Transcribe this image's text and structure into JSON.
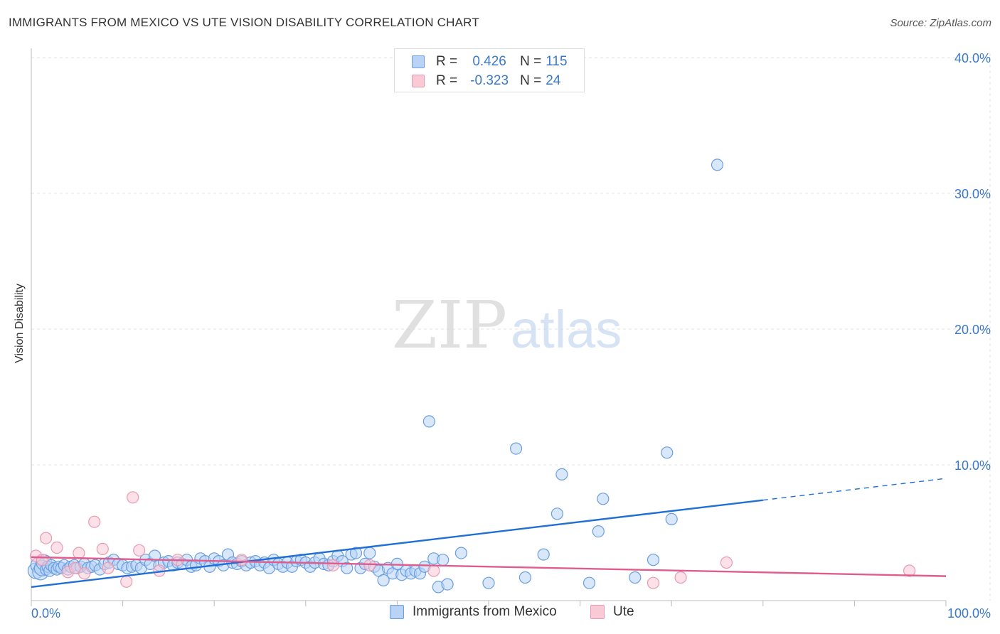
{
  "title": "IMMIGRANTS FROM MEXICO VS UTE VISION DISABILITY CORRELATION CHART",
  "source": "Source: ZipAtlas.com",
  "watermark": {
    "zip": "ZIP",
    "atlas": "atlas"
  },
  "stats": [
    {
      "r_label": "R =",
      "r_value": "0.426",
      "n_label": "N =",
      "n_value": "115",
      "fill": "#b8d3f5",
      "stroke": "#6a9ee0"
    },
    {
      "r_label": "R =",
      "r_value": "-0.323",
      "n_label": "N =",
      "n_value": "24",
      "fill": "#f9c9d6",
      "stroke": "#e89ab2"
    }
  ],
  "legend": [
    {
      "label": "Immigrants from Mexico",
      "fill": "#b8d3f5",
      "stroke": "#6a9ee0"
    },
    {
      "label": "Ute",
      "fill": "#f9c9d6",
      "stroke": "#e89ab2"
    }
  ],
  "chart_data": {
    "type": "scatter",
    "title": "IMMIGRANTS FROM MEXICO VS UTE VISION DISABILITY CORRELATION CHART",
    "xlabel": "",
    "ylabel": "Vision Disability",
    "xlim": [
      0,
      100
    ],
    "ylim": [
      0,
      42
    ],
    "x_tick_labels": [
      {
        "value": 0,
        "label": "0.0%"
      },
      {
        "value": 100,
        "label": "100.0%"
      }
    ],
    "y_tick_labels": [
      {
        "value": 10,
        "label": "10.0%"
      },
      {
        "value": 20,
        "label": "20.0%"
      },
      {
        "value": 30,
        "label": "30.0%"
      },
      {
        "value": 40,
        "label": "40.0%"
      }
    ],
    "grid": true,
    "series": [
      {
        "name": "Immigrants from Mexico",
        "color": "#6a9ee0",
        "fill": "#b8d3f5",
        "points": [
          [
            0.5,
            2.2
          ],
          [
            0.8,
            2.6
          ],
          [
            1.0,
            2.1
          ],
          [
            1.2,
            2.4
          ],
          [
            1.4,
            2.8
          ],
          [
            1.6,
            2.3
          ],
          [
            1.8,
            2.5
          ],
          [
            2.0,
            2.2
          ],
          [
            2.2,
            2.6
          ],
          [
            2.5,
            2.4
          ],
          [
            2.8,
            2.3
          ],
          [
            3.0,
            2.5
          ],
          [
            3.3,
            2.4
          ],
          [
            3.6,
            2.6
          ],
          [
            4.0,
            2.3
          ],
          [
            4.3,
            2.5
          ],
          [
            4.7,
            2.6
          ],
          [
            5.0,
            2.4
          ],
          [
            5.4,
            2.5
          ],
          [
            5.8,
            2.7
          ],
          [
            6.2,
            2.4
          ],
          [
            6.6,
            2.5
          ],
          [
            7.0,
            2.6
          ],
          [
            7.5,
            2.3
          ],
          [
            8.0,
            2.7
          ],
          [
            8.5,
            2.8
          ],
          [
            9.0,
            3.0
          ],
          [
            9.5,
            2.7
          ],
          [
            10.0,
            2.6
          ],
          [
            10.5,
            2.4
          ],
          [
            11.0,
            2.5
          ],
          [
            11.5,
            2.6
          ],
          [
            12.0,
            2.4
          ],
          [
            12.5,
            3.0
          ],
          [
            13.0,
            2.7
          ],
          [
            13.5,
            3.3
          ],
          [
            14.0,
            2.6
          ],
          [
            14.5,
            2.8
          ],
          [
            15.0,
            2.9
          ],
          [
            15.5,
            2.6
          ],
          [
            16.0,
            2.8
          ],
          [
            16.5,
            2.7
          ],
          [
            17.0,
            3.0
          ],
          [
            17.5,
            2.5
          ],
          [
            18.0,
            2.6
          ],
          [
            18.5,
            3.1
          ],
          [
            19.0,
            2.9
          ],
          [
            19.5,
            2.5
          ],
          [
            20.0,
            3.1
          ],
          [
            20.5,
            2.9
          ],
          [
            21.0,
            2.6
          ],
          [
            21.5,
            3.4
          ],
          [
            22.0,
            2.8
          ],
          [
            22.5,
            2.7
          ],
          [
            23.0,
            2.9
          ],
          [
            23.5,
            2.6
          ],
          [
            24.0,
            2.8
          ],
          [
            24.5,
            2.9
          ],
          [
            25.0,
            2.6
          ],
          [
            25.5,
            2.8
          ],
          [
            26.0,
            2.4
          ],
          [
            26.5,
            3.0
          ],
          [
            27.0,
            2.7
          ],
          [
            27.5,
            2.5
          ],
          [
            28.0,
            2.8
          ],
          [
            28.5,
            2.5
          ],
          [
            29.0,
            2.9
          ],
          [
            29.5,
            3.0
          ],
          [
            30.0,
            2.8
          ],
          [
            30.5,
            2.5
          ],
          [
            31.0,
            2.8
          ],
          [
            31.5,
            3.1
          ],
          [
            32.0,
            2.7
          ],
          [
            32.5,
            2.6
          ],
          [
            33.0,
            2.9
          ],
          [
            33.5,
            3.3
          ],
          [
            34.0,
            2.9
          ],
          [
            34.5,
            2.4
          ],
          [
            35.0,
            3.4
          ],
          [
            35.5,
            3.5
          ],
          [
            36.0,
            2.4
          ],
          [
            36.5,
            2.7
          ],
          [
            37.0,
            3.5
          ],
          [
            37.5,
            2.5
          ],
          [
            38.0,
            2.2
          ],
          [
            38.5,
            1.5
          ],
          [
            39.0,
            2.4
          ],
          [
            39.5,
            2.0
          ],
          [
            40.0,
            2.7
          ],
          [
            40.5,
            1.9
          ],
          [
            41.0,
            2.2
          ],
          [
            41.5,
            2.0
          ],
          [
            42.0,
            2.2
          ],
          [
            42.5,
            2.0
          ],
          [
            43.0,
            2.5
          ],
          [
            43.5,
            13.2
          ],
          [
            44.0,
            3.1
          ],
          [
            44.5,
            1.0
          ],
          [
            45.0,
            3.0
          ],
          [
            45.5,
            1.2
          ],
          [
            47.0,
            3.5
          ],
          [
            50.0,
            1.3
          ],
          [
            56.0,
            3.4
          ],
          [
            58.0,
            9.3
          ],
          [
            61.0,
            1.3
          ],
          [
            62.0,
            5.1
          ],
          [
            66.0,
            1.7
          ],
          [
            68.0,
            3.0
          ],
          [
            70.0,
            6.0
          ],
          [
            75.0,
            32.1
          ],
          [
            53.0,
            11.2
          ],
          [
            54.0,
            1.7
          ],
          [
            57.5,
            6.4
          ],
          [
            62.5,
            7.5
          ],
          [
            69.5,
            10.9
          ]
        ]
      },
      {
        "name": "Ute",
        "color": "#e89ab2",
        "fill": "#f9c9d6",
        "points": [
          [
            0.5,
            3.3
          ],
          [
            1.2,
            3.0
          ],
          [
            1.6,
            4.6
          ],
          [
            2.8,
            3.9
          ],
          [
            4.0,
            2.1
          ],
          [
            4.8,
            2.4
          ],
          [
            5.2,
            3.5
          ],
          [
            5.8,
            2.0
          ],
          [
            6.9,
            5.8
          ],
          [
            7.8,
            3.8
          ],
          [
            8.4,
            2.4
          ],
          [
            10.4,
            1.4
          ],
          [
            11.1,
            7.6
          ],
          [
            11.8,
            3.7
          ],
          [
            14.0,
            2.2
          ],
          [
            16.0,
            3.0
          ],
          [
            23.0,
            3.0
          ],
          [
            33.0,
            2.6
          ],
          [
            37.0,
            2.6
          ],
          [
            44.0,
            2.2
          ],
          [
            68.0,
            1.3
          ],
          [
            71.0,
            1.7
          ],
          [
            76.0,
            2.8
          ],
          [
            96.0,
            2.2
          ]
        ]
      }
    ],
    "trend_lines": [
      {
        "series": "Immigrants from Mexico",
        "x": [
          0,
          80
        ],
        "y": [
          1.0,
          7.4
        ],
        "dashed_to": [
          100,
          9.0
        ],
        "color": "#1f6fd6"
      },
      {
        "series": "Ute",
        "x": [
          0,
          100
        ],
        "y": [
          3.2,
          1.8
        ],
        "color": "#e05c8d"
      }
    ]
  }
}
